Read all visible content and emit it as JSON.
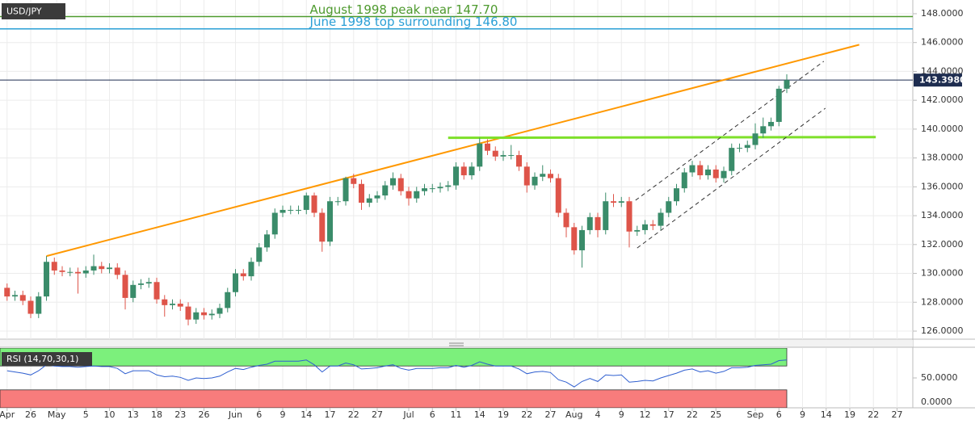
{
  "chart_data": {
    "type": "candlestick",
    "title": "USD/JPY",
    "up_color": "#3a8c6a",
    "down_color": "#de5449",
    "xlim": [
      -0.9,
      115
    ],
    "xticks": [
      {
        "value": 0,
        "label": "Apr"
      },
      {
        "value": 3,
        "label": "26"
      },
      {
        "value": 6.3,
        "label": "May"
      },
      {
        "value": 10,
        "label": "5"
      },
      {
        "value": 13,
        "label": "10"
      },
      {
        "value": 16,
        "label": "13"
      },
      {
        "value": 19,
        "label": "18"
      },
      {
        "value": 22,
        "label": "23"
      },
      {
        "value": 25,
        "label": "26"
      },
      {
        "value": 29,
        "label": "Jun"
      },
      {
        "value": 32,
        "label": "6"
      },
      {
        "value": 35,
        "label": "9"
      },
      {
        "value": 38,
        "label": "14"
      },
      {
        "value": 41,
        "label": "17"
      },
      {
        "value": 44,
        "label": "22"
      },
      {
        "value": 47,
        "label": "27"
      },
      {
        "value": 51,
        "label": "Jul"
      },
      {
        "value": 54,
        "label": "6"
      },
      {
        "value": 57,
        "label": "11"
      },
      {
        "value": 60,
        "label": "14"
      },
      {
        "value": 63,
        "label": "19"
      },
      {
        "value": 66,
        "label": "22"
      },
      {
        "value": 69,
        "label": "27"
      },
      {
        "value": 72,
        "label": "Aug"
      },
      {
        "value": 75,
        "label": "4"
      },
      {
        "value": 78,
        "label": "9"
      },
      {
        "value": 81,
        "label": "12"
      },
      {
        "value": 84,
        "label": "17"
      },
      {
        "value": 87,
        "label": "22"
      },
      {
        "value": 90,
        "label": "25"
      },
      {
        "value": 95,
        "label": "Sep"
      },
      {
        "value": 98,
        "label": "6"
      },
      {
        "value": 101,
        "label": "9"
      },
      {
        "value": 104,
        "label": "14"
      },
      {
        "value": 107,
        "label": "19"
      },
      {
        "value": 110,
        "label": "22"
      },
      {
        "value": 113,
        "label": "27"
      }
    ],
    "ylim": [
      125.44,
      148.95
    ],
    "yticks": [
      {
        "value": 126,
        "label": "126.0000"
      },
      {
        "value": 128,
        "label": "128.0000"
      },
      {
        "value": 130,
        "label": "130.0000"
      },
      {
        "value": 132,
        "label": "132.0000"
      },
      {
        "value": 134,
        "label": "134.0000"
      },
      {
        "value": 136,
        "label": "136.0000"
      },
      {
        "value": 138,
        "label": "138.0000"
      },
      {
        "value": 140,
        "label": "140.0000"
      },
      {
        "value": 142,
        "label": "142.0000"
      },
      {
        "value": 144,
        "label": "144.0000"
      },
      {
        "value": 146,
        "label": "146.0000"
      },
      {
        "value": 148,
        "label": "148.0000"
      }
    ],
    "grid": true,
    "open": [
      129.0,
      128.4,
      128.5,
      128.1,
      127.2,
      128.4,
      130.8,
      130.2,
      130.1,
      130.1,
      130.0,
      130.2,
      130.5,
      130.3,
      130.4,
      129.9,
      128.3,
      129.2,
      129.3,
      129.4,
      128.2,
      127.8,
      127.9,
      127.7,
      126.8,
      127.3,
      127.1,
      127.2,
      127.6,
      128.7,
      130.0,
      129.8,
      130.8,
      131.8,
      132.7,
      134.2,
      134.4,
      134.4,
      134.4,
      135.4,
      134.2,
      132.2,
      135.0,
      135.0,
      136.6,
      136.2,
      134.9,
      135.2,
      135.4,
      136.1,
      136.6,
      135.7,
      135.2,
      135.7,
      135.9,
      135.9,
      136.0,
      136.1,
      137.4,
      136.8,
      137.4,
      139.0,
      138.5,
      138.1,
      138.2,
      138.2,
      137.4,
      136.1,
      136.7,
      136.9,
      136.6,
      134.2,
      133.2,
      131.6,
      133.0,
      133.9,
      133.0,
      135.0,
      134.9,
      135.0,
      132.9,
      133.0,
      133.4,
      133.3,
      134.2,
      135.0,
      135.9,
      137.0,
      137.5,
      136.8,
      137.2,
      136.6,
      137.1,
      138.7,
      138.7,
      138.9,
      139.7,
      140.2,
      140.5,
      142.8
    ],
    "high": [
      129.3,
      128.8,
      128.8,
      128.4,
      128.7,
      131.2,
      131.1,
      130.5,
      130.4,
      130.4,
      130.5,
      131.3,
      130.8,
      130.7,
      130.7,
      130.2,
      129.5,
      129.6,
      129.7,
      129.7,
      128.5,
      128.2,
      128.2,
      128.0,
      127.6,
      127.6,
      127.5,
      127.9,
      129.0,
      130.3,
      130.3,
      131.1,
      132.1,
      133.0,
      134.5,
      134.7,
      134.7,
      134.7,
      135.6,
      135.6,
      134.5,
      135.3,
      135.3,
      136.7,
      136.9,
      136.5,
      135.5,
      135.7,
      136.4,
      137.0,
      136.9,
      136.0,
      136.0,
      136.2,
      136.2,
      136.3,
      136.4,
      137.7,
      137.7,
      137.7,
      139.4,
      139.3,
      138.8,
      138.5,
      138.9,
      138.5,
      137.7,
      137.0,
      137.5,
      137.2,
      136.9,
      134.5,
      133.5,
      133.3,
      134.2,
      134.2,
      135.6,
      135.5,
      135.3,
      135.3,
      133.3,
      133.7,
      133.7,
      134.5,
      135.3,
      136.2,
      137.3,
      137.8,
      137.8,
      137.5,
      137.5,
      137.4,
      139.0,
      139.0,
      139.2,
      140.4,
      140.8,
      140.8,
      143.0,
      143.8
    ],
    "low": [
      128.1,
      128.1,
      127.8,
      126.9,
      126.9,
      128.1,
      129.9,
      129.8,
      129.8,
      128.6,
      129.7,
      129.9,
      130.0,
      130.0,
      129.6,
      127.5,
      128.0,
      128.9,
      129.0,
      127.9,
      127.0,
      127.5,
      127.4,
      126.4,
      126.5,
      126.8,
      126.8,
      126.9,
      127.3,
      128.4,
      129.5,
      129.5,
      130.5,
      131.5,
      132.4,
      133.9,
      134.1,
      134.1,
      134.1,
      133.9,
      131.5,
      131.9,
      134.7,
      134.7,
      135.9,
      134.4,
      134.6,
      134.9,
      135.1,
      135.8,
      135.4,
      134.7,
      134.9,
      135.4,
      135.6,
      135.6,
      135.7,
      135.8,
      136.5,
      136.5,
      137.1,
      138.2,
      137.8,
      137.8,
      137.9,
      137.1,
      135.6,
      135.8,
      136.4,
      136.3,
      133.9,
      132.5,
      131.3,
      130.4,
      132.7,
      132.5,
      132.7,
      134.6,
      134.6,
      131.8,
      132.6,
      132.7,
      133.0,
      133.0,
      133.9,
      134.7,
      135.6,
      136.7,
      136.5,
      136.5,
      136.3,
      136.3,
      136.8,
      138.4,
      138.4,
      138.6,
      139.4,
      139.9,
      140.2,
      142.5
    ],
    "close": [
      128.4,
      128.5,
      128.1,
      127.2,
      128.4,
      130.8,
      130.2,
      130.1,
      130.1,
      130.0,
      130.2,
      130.5,
      130.3,
      130.4,
      129.9,
      128.3,
      129.2,
      129.3,
      129.4,
      128.2,
      127.8,
      127.9,
      127.7,
      126.8,
      127.3,
      127.1,
      127.2,
      127.6,
      128.7,
      130.0,
      129.8,
      130.8,
      131.8,
      132.7,
      134.2,
      134.4,
      134.4,
      134.4,
      135.4,
      134.2,
      132.2,
      135.0,
      135.0,
      136.6,
      136.2,
      134.9,
      135.2,
      135.4,
      136.1,
      136.6,
      135.7,
      135.2,
      135.7,
      135.9,
      135.9,
      136.0,
      136.1,
      137.4,
      136.8,
      137.4,
      139.0,
      138.5,
      138.1,
      138.2,
      138.2,
      137.4,
      136.1,
      136.7,
      136.9,
      136.6,
      134.2,
      133.2,
      131.6,
      133.0,
      133.9,
      133.0,
      135.0,
      134.9,
      135.0,
      132.9,
      133.0,
      133.4,
      133.3,
      134.2,
      135.0,
      135.9,
      137.0,
      137.5,
      136.8,
      137.2,
      136.6,
      137.1,
      138.7,
      138.7,
      138.9,
      139.7,
      140.2,
      140.5,
      142.8,
      143.4
    ],
    "last_price": {
      "value": 143.398,
      "label": "143.3980",
      "color": "#1e2d50"
    },
    "levels": [
      {
        "text": "August 1998 peak near 147.70",
        "value": 147.8,
        "color": "#4e9a2e"
      },
      {
        "text": "June 1998 top surrounding 146.80",
        "value": 146.95,
        "color": "#2a9fd6"
      }
    ],
    "trendlines": [
      {
        "x": [
          5,
          108.2
        ],
        "y": [
          131.2,
          145.85
        ],
        "color": "#ff9800",
        "width": 2,
        "dashed": false
      },
      {
        "x": [
          56,
          110.3
        ],
        "y": [
          139.4,
          139.45
        ],
        "color": "#7ee02a",
        "width": 3,
        "dashed": false
      },
      {
        "x": [
          79.8,
          103.7
        ],
        "y": [
          135.07,
          144.7
        ],
        "color": "#333333",
        "width": 1,
        "dashed": true
      },
      {
        "x": [
          80,
          103.9
        ],
        "y": [
          131.76,
          141.45
        ],
        "color": "#333333",
        "width": 1,
        "dashed": true
      }
    ],
    "rsi": {
      "label": "RSI (14,70,30,1)",
      "color": "#2f5fd0",
      "ylim": [
        0,
        100
      ],
      "yticks": [
        {
          "value": 50,
          "label": "50.0000"
        },
        {
          "value": 0,
          "label": "0.0000"
        }
      ],
      "overbought": 70,
      "oversold": 30,
      "overbought_color": "#7cf07c",
      "oversold_color": "#f87c7c",
      "values": [
        62,
        60,
        58,
        55,
        62,
        72,
        70,
        69,
        69,
        68,
        69,
        70,
        69,
        69,
        66,
        57,
        62,
        62,
        62,
        55,
        52,
        53,
        51,
        46,
        50,
        49,
        50,
        53,
        60,
        66,
        64,
        68,
        71,
        73,
        78,
        78,
        78,
        78,
        80,
        72,
        60,
        70,
        70,
        75,
        72,
        65,
        66,
        67,
        70,
        72,
        66,
        63,
        66,
        66,
        66,
        67,
        67,
        71,
        68,
        71,
        77,
        73,
        70,
        70,
        70,
        65,
        57,
        60,
        61,
        59,
        47,
        43,
        35,
        44,
        49,
        44,
        55,
        54,
        55,
        43,
        44,
        46,
        45,
        50,
        54,
        58,
        63,
        65,
        60,
        62,
        58,
        61,
        67,
        67,
        68,
        71,
        72,
        73,
        79,
        80
      ]
    }
  }
}
